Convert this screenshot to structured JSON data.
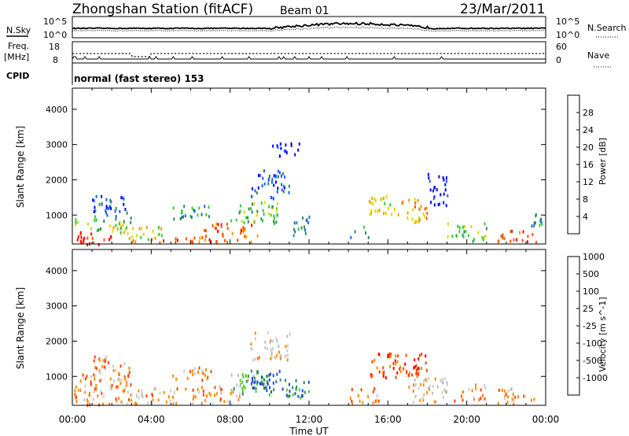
{
  "header": {
    "station": "Zhongshan Station (fitACF)",
    "beam": "Beam 01",
    "date": "23/Mar/2011"
  },
  "strip_labels": {
    "nsky": "N.Sky",
    "nsky_ticks": [
      "10^5",
      "10^0"
    ],
    "nsearch": "N.Search",
    "nsearch_ticks": [
      "10^5",
      "10^0"
    ],
    "freq": "Freq.",
    "freq_unit": "[MHz]",
    "freq_ticks": [
      "18",
      "8"
    ],
    "nave": "Nave",
    "nave_ticks": [
      "60",
      "0"
    ],
    "cpid_label": "CPID",
    "cpid_value": "normal (fast stereo) 153"
  },
  "colors": {
    "power": [
      "#0000ff",
      "#1f5fff",
      "#2e8b57",
      "#32cd32",
      "#d8d800",
      "#ff9900",
      "#ff5500",
      "#ff0000"
    ],
    "velocity": [
      "#ff0000",
      "#ff4400",
      "#ff8800",
      "#cccccc",
      "#bbbbbb",
      "#55cc33",
      "#2e8b57",
      "#1f4fcc"
    ]
  },
  "chart_data": [
    {
      "type": "heatmap",
      "ylabel": "Slant Range [km]",
      "xlabel": "Time UT",
      "x_ticks": [
        "00:00",
        "04:00",
        "08:00",
        "12:00",
        "16:00",
        "20:00",
        "00:00"
      ],
      "y_ticks": [
        1000,
        2000,
        3000,
        4000
      ],
      "ylim": [
        180,
        4600
      ],
      "colorbar": {
        "label": "Power [dB]",
        "ticks": [
          "4",
          "8",
          "12",
          "16",
          "20",
          "24",
          "28"
        ]
      },
      "regions": [
        {
          "t": [
            0.0,
            2.0
          ],
          "r": [
            200,
            600
          ],
          "level": 7
        },
        {
          "t": [
            0.1,
            3.0
          ],
          "r": [
            600,
            1000
          ],
          "level": 3
        },
        {
          "t": [
            1.0,
            3.0
          ],
          "r": [
            1000,
            1600
          ],
          "level": 1
        },
        {
          "t": [
            2.0,
            4.5
          ],
          "r": [
            300,
            700
          ],
          "level": 4
        },
        {
          "t": [
            3.0,
            6.5
          ],
          "r": [
            250,
            400
          ],
          "level": 6
        },
        {
          "t": [
            5.0,
            7.0
          ],
          "r": [
            900,
            1300
          ],
          "level": 2
        },
        {
          "t": [
            6.5,
            9.5
          ],
          "r": [
            250,
            800
          ],
          "level": 6
        },
        {
          "t": [
            8.0,
            10.5
          ],
          "r": [
            800,
            1400
          ],
          "level": 3
        },
        {
          "t": [
            9.0,
            11.0
          ],
          "r": [
            1500,
            2300
          ],
          "level": 1
        },
        {
          "t": [
            10.0,
            11.5
          ],
          "r": [
            2700,
            3100
          ],
          "level": 0
        },
        {
          "t": [
            11.0,
            12.0
          ],
          "r": [
            400,
            1000
          ],
          "level": 2
        },
        {
          "t": [
            14.0,
            15.0
          ],
          "r": [
            300,
            700
          ],
          "level": 2
        },
        {
          "t": [
            15.0,
            16.5
          ],
          "r": [
            1000,
            1600
          ],
          "level": 4
        },
        {
          "t": [
            16.5,
            18.0
          ],
          "r": [
            800,
            1500
          ],
          "level": 5
        },
        {
          "t": [
            18.0,
            19.0
          ],
          "r": [
            1300,
            2200
          ],
          "level": 0
        },
        {
          "t": [
            19.0,
            21.0
          ],
          "r": [
            300,
            800
          ],
          "level": 3
        },
        {
          "t": [
            21.5,
            23.5
          ],
          "r": [
            250,
            600
          ],
          "level": 6
        },
        {
          "t": [
            23.0,
            23.8
          ],
          "r": [
            700,
            1100
          ],
          "level": 2
        }
      ]
    },
    {
      "type": "heatmap",
      "ylabel": "Slant Range [km]",
      "xlabel": "Time UT",
      "x_ticks": [
        "00:00",
        "04:00",
        "08:00",
        "12:00",
        "16:00",
        "20:00",
        "00:00"
      ],
      "y_ticks": [
        1000,
        2000,
        3000,
        4000
      ],
      "ylim": [
        180,
        4600
      ],
      "colorbar": {
        "label": "Velocity [m s^-1]",
        "ticks": [
          "-1000",
          "-500",
          "-100",
          "-25",
          "25",
          "100",
          "500",
          "1000"
        ]
      },
      "regions": [
        {
          "t": [
            0.0,
            2.0
          ],
          "r": [
            200,
            700
          ],
          "level": 2
        },
        {
          "t": [
            0.1,
            3.0
          ],
          "r": [
            700,
            1100
          ],
          "level": 2
        },
        {
          "t": [
            1.0,
            3.0
          ],
          "r": [
            1100,
            1600
          ],
          "level": 2
        },
        {
          "t": [
            2.0,
            6.5
          ],
          "r": [
            250,
            700
          ],
          "level": 2
        },
        {
          "t": [
            5.0,
            7.0
          ],
          "r": [
            900,
            1300
          ],
          "level": 2
        },
        {
          "t": [
            6.5,
            8.5
          ],
          "r": [
            250,
            800
          ],
          "level": 2
        },
        {
          "t": [
            8.0,
            10.0
          ],
          "r": [
            500,
            1200
          ],
          "level": 5
        },
        {
          "t": [
            9.0,
            10.5
          ],
          "r": [
            600,
            1200
          ],
          "level": 7
        },
        {
          "t": [
            9.0,
            11.0
          ],
          "r": [
            1500,
            2300
          ],
          "level": 3
        },
        {
          "t": [
            10.5,
            12.0
          ],
          "r": [
            400,
            1000
          ],
          "level": 6
        },
        {
          "t": [
            14.0,
            15.5
          ],
          "r": [
            250,
            700
          ],
          "level": 2
        },
        {
          "t": [
            15.0,
            18.0
          ],
          "r": [
            1000,
            1700
          ],
          "level": 1
        },
        {
          "t": [
            17.0,
            19.0
          ],
          "r": [
            300,
            1100
          ],
          "level": 3
        },
        {
          "t": [
            19.0,
            21.0
          ],
          "r": [
            300,
            800
          ],
          "level": 2
        },
        {
          "t": [
            21.5,
            23.5
          ],
          "r": [
            250,
            700
          ],
          "level": 2
        }
      ]
    }
  ]
}
